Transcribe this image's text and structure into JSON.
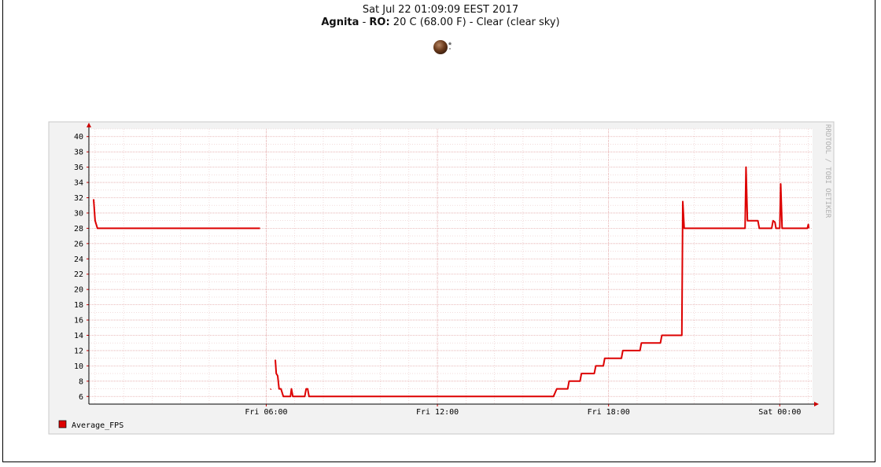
{
  "header": {
    "datetime": "Sat Jul 22 01:09:09 EEST 2017",
    "location_name": "Agnita",
    "location_sep": " - ",
    "location_code": "RO:",
    "weather": " 20 C (68.00 F) - Clear (clear sky)"
  },
  "icons": {
    "weather": "clear-night-moon-icon"
  },
  "colors": {
    "series": "#dd0000",
    "grid": "#e3a8a8",
    "panel": "#f2f2f2",
    "axis_arrow": "#cc0000"
  },
  "chart_data": {
    "type": "line",
    "watermark": "RRDTOOL / TOBI OETIKER",
    "ylim": [
      5,
      41
    ],
    "yticks": [
      6,
      8,
      10,
      12,
      14,
      16,
      18,
      20,
      22,
      24,
      26,
      28,
      30,
      32,
      34,
      36,
      38,
      40
    ],
    "xlim": [
      "Thu 23:47",
      "Sat 01:09"
    ],
    "xticks": [
      {
        "label": "Fri 06:00",
        "t": "Fri 06:00"
      },
      {
        "label": "Fri 12:00",
        "t": "Fri 12:00"
      },
      {
        "label": "Fri 18:00",
        "t": "Fri 18:00"
      },
      {
        "label": "Sat 00:00",
        "t": "Sat 00:00"
      }
    ],
    "grid": true,
    "legend": "bottom-left",
    "series": [
      {
        "name": "Average_FPS",
        "color": "#dd0000",
        "segments": [
          [
            [
              "Thu 23:57",
              31.8
            ],
            [
              "Thu 24:00",
              29
            ],
            [
              "Fri 00:05",
              28
            ],
            [
              "Fri 05:47",
              28
            ]
          ],
          [
            [
              "Fri 06:09",
              6.9
            ],
            [
              "Fri 06:10",
              7
            ]
          ],
          [
            [
              "Fri 06:19",
              10.8
            ],
            [
              "Fri 06:21",
              9
            ],
            [
              "Fri 06:24",
              8.7
            ],
            [
              "Fri 06:27",
              7
            ],
            [
              "Fri 06:31",
              7
            ],
            [
              "Fri 06:36",
              6
            ],
            [
              "Fri 06:51",
              6
            ],
            [
              "Fri 06:53",
              7
            ],
            [
              "Fri 06:56",
              6
            ],
            [
              "Fri 07:21",
              6
            ],
            [
              "Fri 07:24",
              7
            ],
            [
              "Fri 07:27",
              7
            ],
            [
              "Fri 07:30",
              6
            ],
            [
              "Fri 16:04",
              6
            ],
            [
              "Fri 16:11",
              7
            ],
            [
              "Fri 16:34",
              7
            ],
            [
              "Fri 16:37",
              8
            ],
            [
              "Fri 17:00",
              8
            ],
            [
              "Fri 17:03",
              9
            ],
            [
              "Fri 17:30",
              9
            ],
            [
              "Fri 17:33",
              10
            ],
            [
              "Fri 17:49",
              10
            ],
            [
              "Fri 17:52",
              11
            ],
            [
              "Fri 18:27",
              11
            ],
            [
              "Fri 18:30",
              12
            ],
            [
              "Fri 19:06",
              12
            ],
            [
              "Fri 19:09",
              13
            ],
            [
              "Fri 19:49",
              13
            ],
            [
              "Fri 19:52",
              14
            ],
            [
              "Fri 20:34",
              14
            ],
            [
              "Fri 20:36",
              31.5
            ],
            [
              "Fri 20:39",
              28
            ],
            [
              "Fri 22:47",
              28
            ],
            [
              "Fri 22:49",
              36
            ],
            [
              "Fri 22:52",
              29
            ],
            [
              "Fri 23:14",
              29
            ],
            [
              "Fri 23:17",
              28
            ],
            [
              "Fri 23:43",
              28
            ],
            [
              "Fri 23:46",
              29
            ],
            [
              "Fri 23:50",
              28.8
            ],
            [
              "Fri 23:52",
              28
            ],
            [
              "Sat 00:00",
              28
            ],
            [
              "Sat 00:02",
              33.8
            ],
            [
              "Sat 00:05",
              28
            ],
            [
              "Sat 00:58",
              28
            ],
            [
              "Sat 01:00",
              28.5
            ],
            [
              "Sat 01:01",
              28
            ]
          ]
        ]
      }
    ]
  }
}
